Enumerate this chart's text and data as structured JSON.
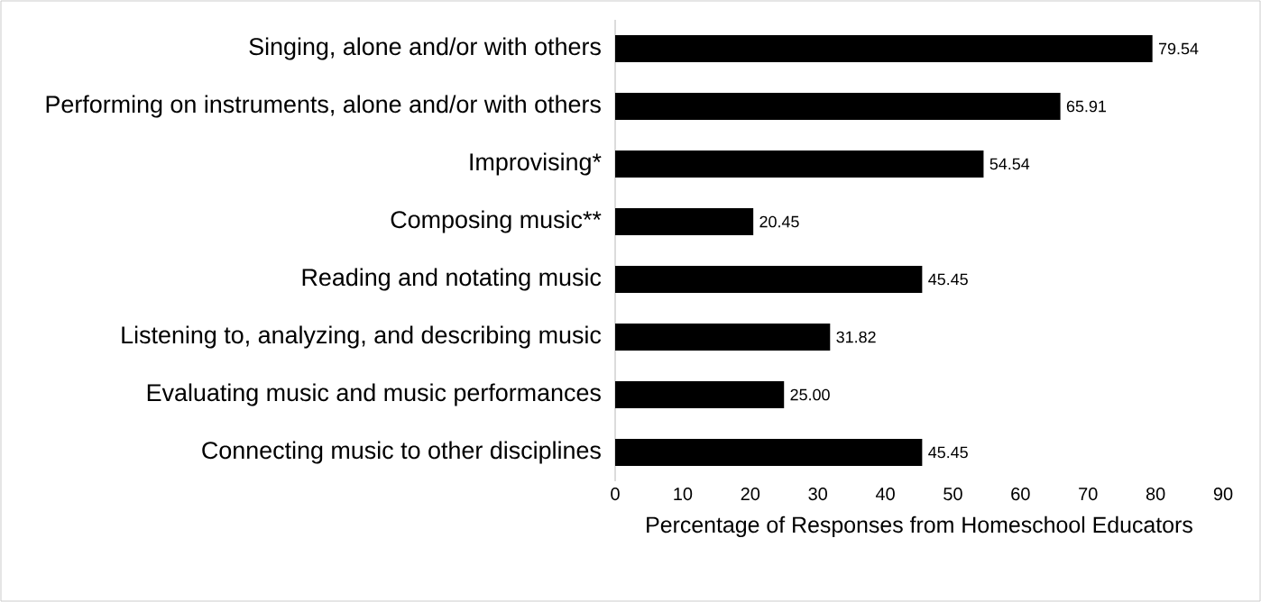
{
  "chart_data": {
    "type": "bar",
    "orientation": "horizontal",
    "categories": [
      "Singing, alone and/or with others",
      "Performing on instruments, alone and/or with others",
      "Improvising*",
      "Composing music**",
      "Reading and notating music",
      "Listening to, analyzing, and describing music",
      "Evaluating music and music performances",
      "Connecting music to other disciplines"
    ],
    "values": [
      79.54,
      65.91,
      54.54,
      20.45,
      45.45,
      31.82,
      25.0,
      45.45
    ],
    "value_labels": [
      "79.54",
      "65.91",
      "54.54",
      "20.45",
      "45.45",
      "31.82",
      "25.00",
      "45.45"
    ],
    "color": "#000000",
    "xlabel": "Percentage of Responses from Homeschool Educators",
    "xlim": [
      0,
      90
    ],
    "xticks": [
      0,
      10,
      20,
      30,
      40,
      50,
      60,
      70,
      80,
      90
    ],
    "grid": false
  }
}
